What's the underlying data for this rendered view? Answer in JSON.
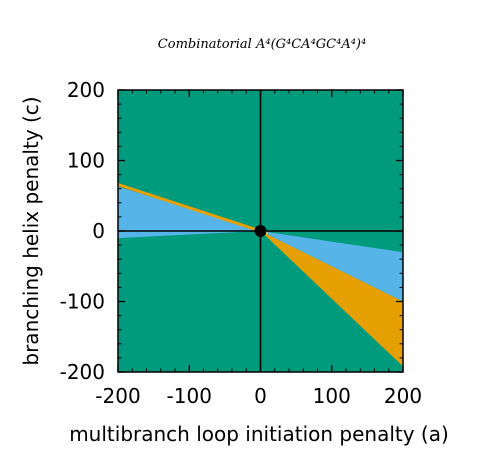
{
  "chart_data": {
    "type": "area",
    "title": "Combinatorial A⁴(G⁴CA⁴GC⁴A⁴)⁴",
    "xlabel": "multibranch loop initiation penalty (a)",
    "ylabel": "branching helix penalty (c)",
    "xlim": [
      -200,
      200
    ],
    "ylim": [
      -200,
      200
    ],
    "x_ticks": [
      -200,
      -100,
      0,
      100,
      200
    ],
    "y_ticks": [
      -200,
      -100,
      0,
      100,
      200
    ],
    "x_tick_labels": [
      "-200",
      "-100",
      "0",
      "100",
      "200"
    ],
    "y_tick_labels": [
      "-200",
      "-100",
      "0",
      "100",
      "200"
    ],
    "grid": false,
    "background_region_color": "#009a7c",
    "regions": [
      {
        "color": "#56b4e9",
        "polygon": [
          [
            -200,
            63
          ],
          [
            0,
            0
          ],
          [
            -200,
            -10
          ]
        ]
      },
      {
        "color": "#56b4e9",
        "polygon": [
          [
            0,
            0
          ],
          [
            200,
            -30
          ],
          [
            200,
            -100
          ]
        ]
      },
      {
        "color": "#e69f00",
        "polygon": [
          [
            0,
            0
          ],
          [
            200,
            -100
          ],
          [
            200,
            -192
          ]
        ]
      }
    ],
    "boundary_lines": [
      {
        "color": "#e69f00",
        "points": [
          [
            -200,
            66
          ],
          [
            0,
            0
          ]
        ]
      },
      {
        "color": "#f0e442",
        "points": [
          [
            0,
            0
          ],
          [
            10,
            -3
          ]
        ]
      }
    ],
    "reference_lines": {
      "x": 0,
      "y": 0
    },
    "marker": {
      "x": 0,
      "y": 0
    }
  }
}
